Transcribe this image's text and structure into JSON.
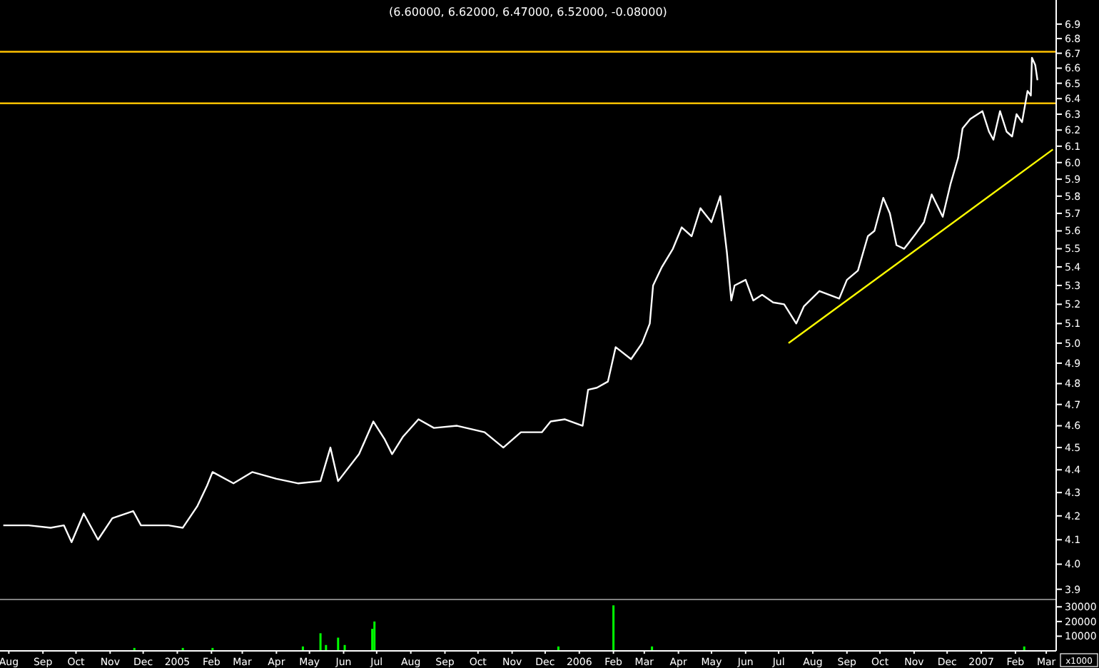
{
  "chart_data": [
    {
      "type": "line",
      "title": "(6.60000, 6.62000, 6.47000, 6.52000, -0.08000)",
      "x": [
        "2004-07-27",
        "2004-08-19",
        "2004-09-08",
        "2004-09-20",
        "2004-09-27",
        "2004-10-08",
        "2004-10-21",
        "2004-11-03",
        "2004-11-22",
        "2004-11-29",
        "2004-12-24",
        "2005-01-06",
        "2005-01-19",
        "2005-01-28",
        "2005-02-02",
        "2005-02-21",
        "2005-03-10",
        "2005-04-01",
        "2005-04-21",
        "2005-05-11",
        "2005-05-20",
        "2005-05-27",
        "2005-06-15",
        "2005-06-28",
        "2005-07-08",
        "2005-07-15",
        "2005-07-25",
        "2005-08-08",
        "2005-08-22",
        "2005-09-12",
        "2005-10-07",
        "2005-10-24",
        "2005-11-09",
        "2005-11-28",
        "2005-12-06",
        "2005-12-19",
        "2006-01-04",
        "2006-01-09",
        "2006-01-17",
        "2006-01-27",
        "2006-02-03",
        "2006-02-17",
        "2006-02-27",
        "2006-03-06",
        "2006-03-09",
        "2006-03-17",
        "2006-03-27",
        "2006-04-04",
        "2006-04-13",
        "2006-04-21",
        "2006-05-01",
        "2006-05-09",
        "2006-05-15",
        "2006-05-19",
        "2006-05-22",
        "2006-06-01",
        "2006-06-08",
        "2006-06-16",
        "2006-06-26",
        "2006-07-06",
        "2006-07-17",
        "2006-07-24",
        "2006-08-07",
        "2006-08-16",
        "2006-08-25",
        "2006-09-01",
        "2006-09-11",
        "2006-09-20",
        "2006-09-26",
        "2006-10-04",
        "2006-10-10",
        "2006-10-16",
        "2006-10-23",
        "2006-11-02",
        "2006-11-10",
        "2006-11-17",
        "2006-11-27",
        "2006-12-04",
        "2006-12-11",
        "2006-12-15",
        "2006-12-22",
        "2007-01-02",
        "2007-01-08",
        "2007-01-12",
        "2007-01-18",
        "2007-01-24",
        "2007-01-29",
        "2007-02-02",
        "2007-02-07",
        "2007-02-12",
        "2007-02-15",
        "2007-02-16",
        "2007-02-19",
        "2007-02-21"
      ],
      "series": [
        {
          "color": "#ffffff",
          "values": [
            4.16,
            4.16,
            4.15,
            4.16,
            4.09,
            4.21,
            4.1,
            4.19,
            4.22,
            4.16,
            4.16,
            4.15,
            4.24,
            4.33,
            4.39,
            4.34,
            4.39,
            4.36,
            4.34,
            4.35,
            4.5,
            4.35,
            4.47,
            4.62,
            4.54,
            4.47,
            4.55,
            4.63,
            4.59,
            4.6,
            4.57,
            4.5,
            4.57,
            4.57,
            4.62,
            4.63,
            4.6,
            4.77,
            4.78,
            4.81,
            4.98,
            4.92,
            5.0,
            5.1,
            5.3,
            5.4,
            5.5,
            5.62,
            5.57,
            5.73,
            5.65,
            5.8,
            5.48,
            5.22,
            5.3,
            5.33,
            5.22,
            5.25,
            5.21,
            5.2,
            5.1,
            5.19,
            5.27,
            5.25,
            5.23,
            5.33,
            5.38,
            5.57,
            5.6,
            5.79,
            5.7,
            5.52,
            5.5,
            5.58,
            5.65,
            5.81,
            5.68,
            5.87,
            6.03,
            6.21,
            6.27,
            6.32,
            6.19,
            6.14,
            6.32,
            6.19,
            6.16,
            6.3,
            6.25,
            6.45,
            6.42,
            6.67,
            6.62,
            6.52
          ]
        },
        {
          "type": "line",
          "color": "#ffff00",
          "x": [
            "2006-07-10",
            "2007-03-07"
          ],
          "values": [
            5.0,
            6.08
          ]
        }
      ],
      "log": "y",
      "xlim": [
        "2004-07-24",
        "2007-03-10"
      ],
      "ylim": [
        3.86,
        7.07
      ],
      "yticks": [
        3.9,
        {
          "value": 4,
          "label": "4.0"
        },
        4.1,
        4.2,
        4.3,
        4.4,
        4.5,
        4.6,
        4.7,
        4.8,
        4.9,
        {
          "value": 5,
          "label": "5.0"
        },
        5.1,
        5.2,
        5.3,
        5.4,
        5.5,
        5.6,
        5.7,
        5.8,
        5.9,
        {
          "value": 6,
          "label": "6.0"
        },
        6.1,
        6.2,
        6.3,
        6.4,
        6.5,
        6.6,
        6.7,
        6.8,
        6.9
      ],
      "ref_lines": [
        {
          "axis": "y",
          "value": 6.71,
          "color": "#ffc000"
        },
        {
          "axis": "y",
          "value": 6.37,
          "color": "#ffc000"
        }
      ],
      "tick_labels": "y"
    },
    {
      "type": "bar",
      "x": [
        "2004-11-23",
        "2005-01-06",
        "2005-02-02",
        "2005-04-25",
        "2005-05-11",
        "2005-05-16",
        "2005-05-27",
        "2005-06-02",
        "2005-06-27",
        "2005-06-29",
        "2005-12-13",
        "2006-02-01",
        "2006-03-08",
        "2007-02-09"
      ],
      "series": [
        {
          "color": "#00ff00",
          "values": [
            2000,
            2000,
            2000,
            3000,
            12000,
            4000,
            9000,
            4000,
            15000,
            20000,
            3000,
            31000,
            3000,
            3000
          ]
        }
      ],
      "xlim": [
        "2004-07-24",
        "2007-03-10"
      ],
      "ylim": [
        0,
        35000
      ],
      "yticks": [
        10000,
        20000,
        30000
      ],
      "xticks": [
        {
          "value": "2004-08",
          "label": "Aug"
        },
        {
          "value": "2004-09",
          "label": "Sep"
        },
        {
          "value": "2004-10",
          "label": "Oct"
        },
        {
          "value": "2004-11",
          "label": "Nov"
        },
        {
          "value": "2004-12",
          "label": "Dec"
        },
        {
          "value": "2005-01",
          "label": "2005"
        },
        {
          "value": "2005-02",
          "label": "Feb"
        },
        {
          "value": "2005-03",
          "label": "Mar"
        },
        {
          "value": "2005-04",
          "label": "Apr"
        },
        {
          "value": "2005-05",
          "label": "May"
        },
        {
          "value": "2005-06",
          "label": "Jun"
        },
        {
          "value": "2005-07",
          "label": "Jul"
        },
        {
          "value": "2005-08",
          "label": "Aug"
        },
        {
          "value": "2005-09",
          "label": "Sep"
        },
        {
          "value": "2005-10",
          "label": "Oct"
        },
        {
          "value": "2005-11",
          "label": "Nov"
        },
        {
          "value": "2005-12",
          "label": "Dec"
        },
        {
          "value": "2006-01",
          "label": "2006"
        },
        {
          "value": "2006-02",
          "label": "Feb"
        },
        {
          "value": "2006-03",
          "label": "Mar"
        },
        {
          "value": "2006-04",
          "label": "Apr"
        },
        {
          "value": "2006-05",
          "label": "May"
        },
        {
          "value": "2006-06",
          "label": "Jun"
        },
        {
          "value": "2006-07",
          "label": "Jul"
        },
        {
          "value": "2006-08",
          "label": "Aug"
        },
        {
          "value": "2006-09",
          "label": "Sep"
        },
        {
          "value": "2006-10",
          "label": "Oct"
        },
        {
          "value": "2006-11",
          "label": "Nov"
        },
        {
          "value": "2006-12",
          "label": "Dec"
        },
        {
          "value": "2007-01",
          "label": "2007"
        },
        {
          "value": "2007-02",
          "label": "Feb"
        },
        {
          "value": "2007-03",
          "label": "Mar"
        }
      ],
      "annotations": [
        "x1000"
      ]
    }
  ]
}
